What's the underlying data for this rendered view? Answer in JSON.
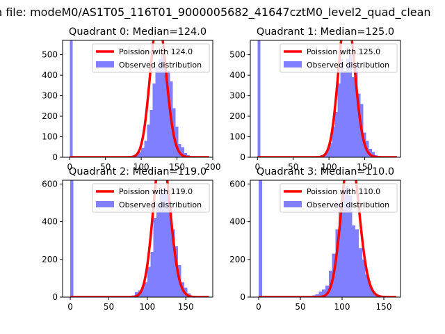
{
  "figure_title": "n file: modeM0/AS1T05_116T01_9000005682_41647cztM0_level2_quad_clean",
  "chart_data": [
    {
      "type": "histogram",
      "title": "Quadrant 0: Median=124.0",
      "median": 124.0,
      "xlim": [
        -10,
        200
      ],
      "ylim": [
        0,
        570
      ],
      "xticks": [
        0,
        50,
        100,
        150,
        200
      ],
      "xtick_labels": [
        "0",
        "50",
        "100",
        "150",
        "200"
      ],
      "yticks": [
        0,
        100,
        200,
        300,
        400,
        500
      ],
      "ytick_labels": [
        "0",
        "100",
        "200",
        "300",
        "400",
        "500"
      ],
      "bins": {
        "start": 0,
        "width": 4,
        "counts": [
          575,
          0,
          0,
          0,
          0,
          0,
          0,
          0,
          0,
          0,
          0,
          0,
          0,
          0,
          0,
          0,
          0,
          0,
          0,
          0,
          3,
          5,
          8,
          15,
          25,
          45,
          80,
          160,
          230,
          360,
          440,
          480,
          500,
          460,
          420,
          370,
          240,
          150,
          65,
          50,
          20,
          10,
          5,
          0,
          0,
          0,
          0,
          0
        ]
      },
      "fit_label": "Poission with 124.0",
      "hist_label": "Observed distribution",
      "legend_position": "upper right",
      "colors": {
        "hist": "#7f7fff",
        "fit": "#ff0000"
      }
    },
    {
      "type": "histogram",
      "title": "Quadrant 1: Median=125.0",
      "median": 125.0,
      "xlim": [
        -10,
        200
      ],
      "ylim": [
        0,
        570
      ],
      "xticks": [
        0,
        50,
        100,
        150
      ],
      "xtick_labels": [
        "0",
        "50",
        "100",
        "150"
      ],
      "yticks": [
        0,
        100,
        200,
        300,
        400,
        500
      ],
      "ytick_labels": [
        "0",
        "100",
        "200",
        "300",
        "400",
        "500"
      ],
      "bins": {
        "start": 0,
        "width": 4,
        "counts": [
          575,
          0,
          0,
          0,
          0,
          0,
          0,
          0,
          0,
          0,
          0,
          0,
          0,
          0,
          0,
          0,
          0,
          0,
          0,
          0,
          0,
          2,
          10,
          15,
          35,
          70,
          150,
          220,
          360,
          480,
          420,
          480,
          500,
          390,
          460,
          310,
          260,
          120,
          80,
          40,
          25,
          10,
          5,
          0,
          0,
          0,
          0
        ]
      },
      "fit_label": "Poission with 125.0",
      "hist_label": "Observed distribution",
      "legend_position": "upper right",
      "colors": {
        "hist": "#7f7fff",
        "fit": "#ff0000"
      }
    },
    {
      "type": "histogram",
      "title": "Quadrant 2: Median=119.0",
      "median": 119.0,
      "xlim": [
        -10,
        185
      ],
      "ylim": [
        0,
        620
      ],
      "xticks": [
        0,
        50,
        100,
        150
      ],
      "xtick_labels": [
        "0",
        "50",
        "100",
        "150"
      ],
      "yticks": [
        0,
        200,
        400,
        600
      ],
      "ytick_labels": [
        "0",
        "200",
        "400",
        "600"
      ],
      "bins": {
        "start": 0,
        "width": 4,
        "counts": [
          620,
          0,
          0,
          0,
          0,
          0,
          0,
          0,
          0,
          0,
          0,
          0,
          0,
          0,
          0,
          0,
          0,
          0,
          0,
          5,
          10,
          25,
          35,
          50,
          80,
          160,
          240,
          420,
          500,
          560,
          580,
          570,
          500,
          360,
          270,
          170,
          80,
          50,
          20,
          0,
          0,
          0,
          0,
          0,
          0
        ]
      },
      "fit_label": "Poission with 119.0",
      "hist_label": "Observed distribution",
      "legend_position": "upper right",
      "colors": {
        "hist": "#7f7fff",
        "fit": "#ff0000"
      }
    },
    {
      "type": "histogram",
      "title": "Quadrant 3: Median=110.0",
      "median": 110.0,
      "xlim": [
        -10,
        170
      ],
      "ylim": [
        0,
        620
      ],
      "xticks": [
        0,
        50,
        100,
        150
      ],
      "xtick_labels": [
        "0",
        "50",
        "100",
        "150"
      ],
      "yticks": [
        0,
        200,
        400,
        600
      ],
      "ytick_labels": [
        "0",
        "200",
        "400",
        "600"
      ],
      "bins": {
        "start": 0,
        "width": 4,
        "counts": [
          620,
          0,
          0,
          0,
          0,
          0,
          0,
          0,
          0,
          0,
          0,
          0,
          0,
          0,
          0,
          5,
          10,
          15,
          30,
          40,
          60,
          140,
          230,
          360,
          500,
          560,
          590,
          540,
          380,
          360,
          260,
          200,
          120,
          60,
          30,
          10,
          0,
          0,
          0,
          0
        ]
      },
      "fit_label": "Poission with 110.0",
      "hist_label": "Observed distribution",
      "legend_position": "upper right",
      "colors": {
        "hist": "#7f7fff",
        "fit": "#ff0000"
      }
    }
  ]
}
